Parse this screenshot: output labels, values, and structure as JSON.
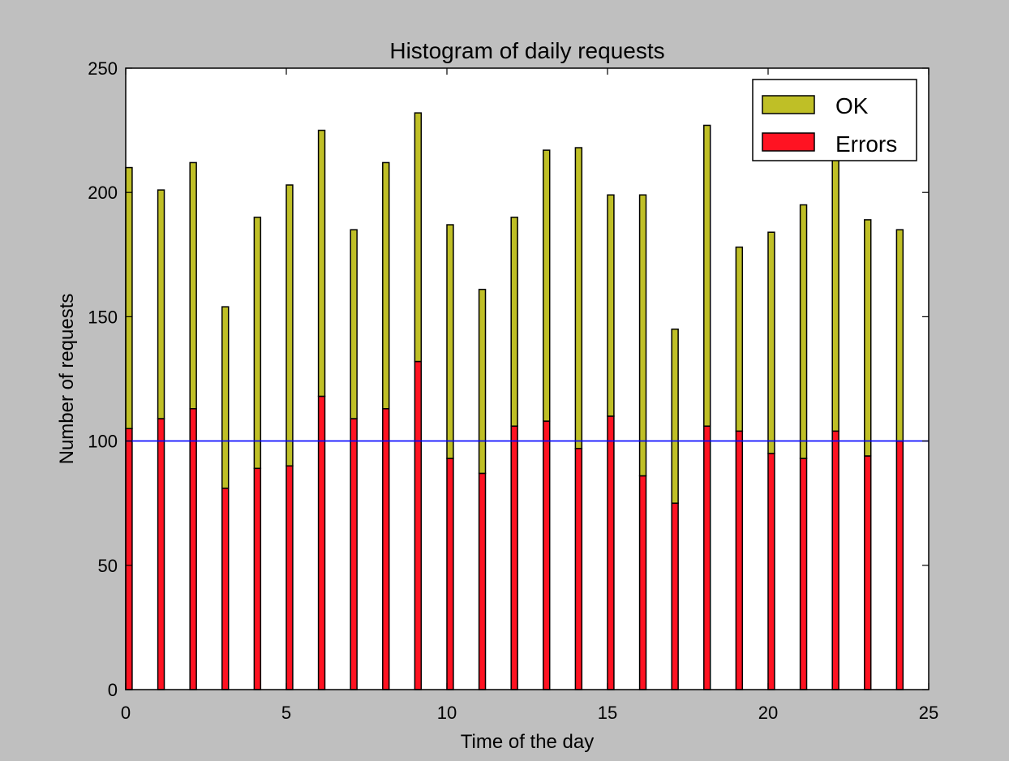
{
  "colors": {
    "figure_background": "#bfbfbf",
    "plot_background": "#ffffff",
    "ok": "#bfbf26",
    "errors": "#ff1322",
    "reference_line": "#0000ff"
  },
  "chart_data": {
    "type": "bar",
    "stacked": true,
    "title": "Histogram of daily requests",
    "xlabel": "Time of the day",
    "ylabel": "Number of requests",
    "xlim": [
      0,
      25
    ],
    "ylim": [
      0,
      250
    ],
    "xticks": [
      0,
      5,
      10,
      15,
      20,
      25
    ],
    "yticks": [
      0,
      50,
      100,
      150,
      200,
      250
    ],
    "bar_width": 0.2,
    "x": [
      0,
      1,
      2,
      3,
      4,
      5,
      6,
      7,
      8,
      9,
      10,
      11,
      12,
      13,
      14,
      15,
      16,
      17,
      18,
      19,
      20,
      21,
      22,
      23,
      24
    ],
    "series": [
      {
        "name": "Errors",
        "color": "#ff1322",
        "values": [
          105,
          109,
          113,
          81,
          89,
          90,
          118,
          109,
          113,
          132,
          93,
          87,
          106,
          108,
          97,
          110,
          86,
          75,
          106,
          104,
          95,
          93,
          104,
          94,
          100
        ]
      },
      {
        "name": "OK",
        "color": "#bfbf26",
        "values": [
          105,
          92,
          99,
          73,
          101,
          113,
          107,
          76,
          99,
          100,
          94,
          74,
          84,
          109,
          121,
          89,
          113,
          70,
          121,
          74,
          89,
          102,
          110,
          95,
          85
        ]
      }
    ],
    "reference_line": {
      "y": 100,
      "color": "#0000ff"
    },
    "legend": {
      "position": "top-right",
      "entries": [
        "OK",
        "Errors"
      ]
    },
    "grid": false
  }
}
